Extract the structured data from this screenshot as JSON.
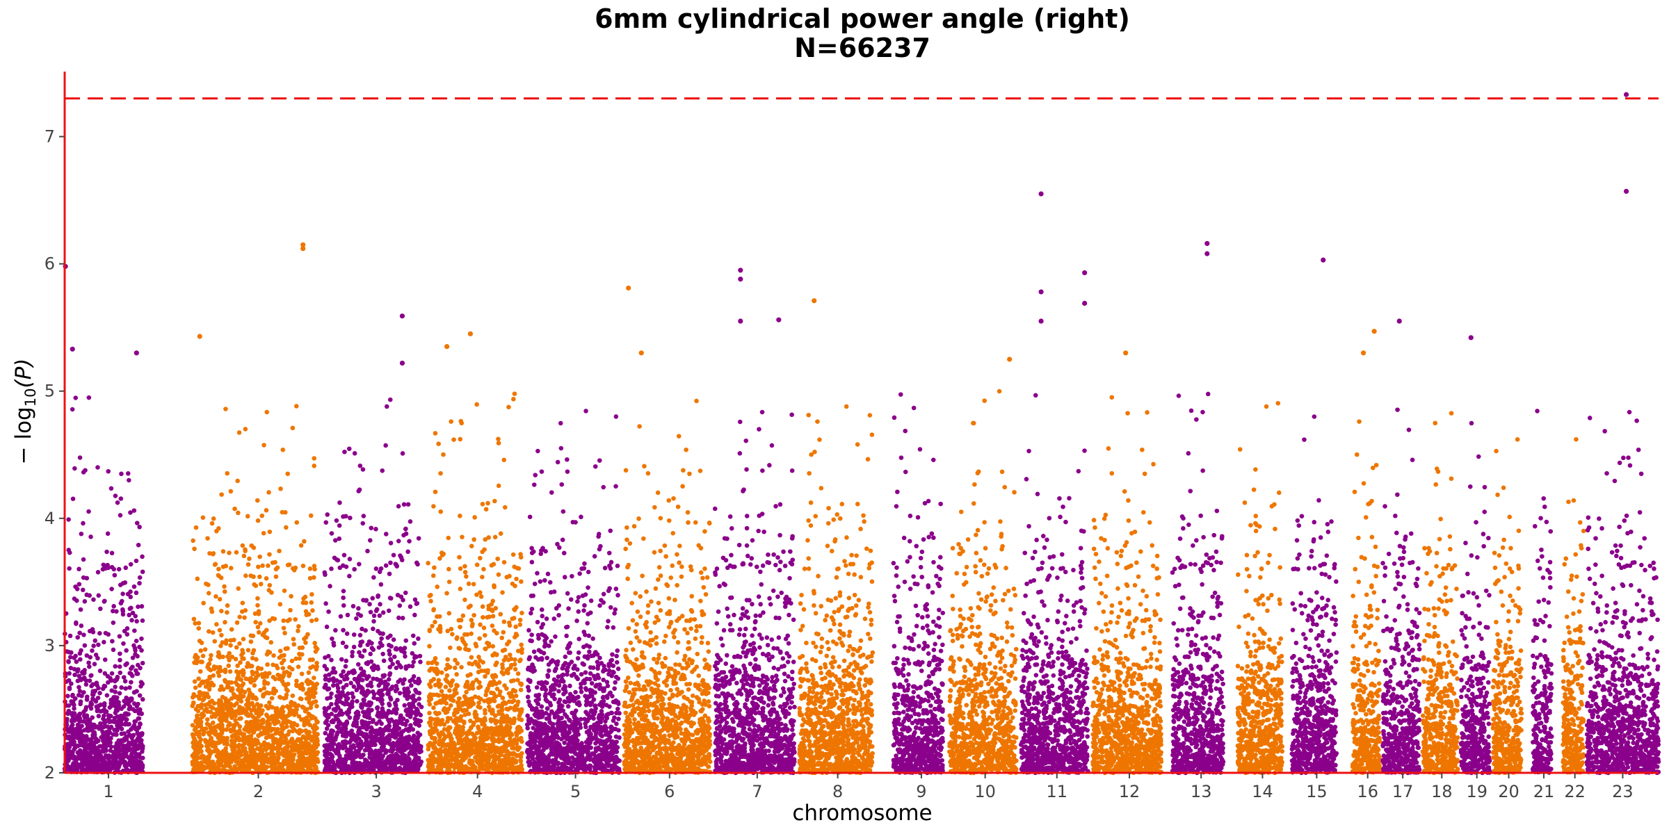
{
  "chart_data": {
    "type": "scatter",
    "title": "6mm cylindrical power angle (right)",
    "subtitle": "N=66237",
    "xlabel": "chromosome",
    "ylabel_prefix": "− log",
    "ylabel_subscript": "10",
    "ylabel_suffix": "(P)",
    "ylim": [
      2,
      7.5
    ],
    "yticks": [
      "2",
      "3",
      "4",
      "5",
      "6",
      "7"
    ],
    "threshold": 7.3,
    "threshold_color": "#ee1111",
    "axis_color": "#ee1111",
    "grid": false,
    "colors": [
      "#8b008b",
      "#ee7600"
    ],
    "chromosomes": [
      {
        "label": "1",
        "start": 0.0,
        "end": 0.055,
        "gap_after": 0.006
      },
      {
        "label": "2",
        "start": 0.08,
        "end": 0.163,
        "gap_after": 0.004
      },
      {
        "label": "3",
        "start": 0.163,
        "end": 0.228,
        "gap_after": 0.004
      },
      {
        "label": "4",
        "start": 0.228,
        "end": 0.29,
        "gap_after": 0.003
      },
      {
        "label": "5",
        "start": 0.29,
        "end": 0.351,
        "gap_after": 0.003
      },
      {
        "label": "6",
        "start": 0.351,
        "end": 0.408,
        "gap_after": 0.003
      },
      {
        "label": "7",
        "start": 0.408,
        "end": 0.461,
        "gap_after": 0.003
      },
      {
        "label": "8",
        "start": 0.461,
        "end": 0.509,
        "gap_after": 0.002
      },
      {
        "label": "9",
        "start": 0.52,
        "end": 0.555,
        "gap_after": 0.004
      },
      {
        "label": "10",
        "start": 0.555,
        "end": 0.6,
        "gap_after": 0.003
      },
      {
        "label": "11",
        "start": 0.6,
        "end": 0.645,
        "gap_after": 0.003
      },
      {
        "label": "12",
        "start": 0.645,
        "end": 0.691,
        "gap_after": 0.003
      },
      {
        "label": "13",
        "start": 0.695,
        "end": 0.731,
        "gap_after": 0.004
      },
      {
        "label": "14",
        "start": 0.736,
        "end": 0.767,
        "gap_after": 0.003
      },
      {
        "label": "15",
        "start": 0.77,
        "end": 0.801,
        "gap_after": 0.003
      },
      {
        "label": "16",
        "start": 0.808,
        "end": 0.827,
        "gap_after": 0.002
      },
      {
        "label": "17",
        "start": 0.827,
        "end": 0.852,
        "gap_after": 0.002
      },
      {
        "label": "18",
        "start": 0.852,
        "end": 0.876,
        "gap_after": 0.002
      },
      {
        "label": "19",
        "start": 0.876,
        "end": 0.896,
        "gap_after": 0.002
      },
      {
        "label": "20",
        "start": 0.896,
        "end": 0.916,
        "gap_after": 0.002
      },
      {
        "label": "21",
        "start": 0.921,
        "end": 0.935,
        "gap_after": 0.002
      },
      {
        "label": "22",
        "start": 0.94,
        "end": 0.955,
        "gap_after": 0.002
      },
      {
        "label": "23",
        "start": 0.955,
        "end": 1.0,
        "gap_after": 0.0
      }
    ],
    "tall_peaks": [
      {
        "chrom": "1",
        "pos": 0.01,
        "p": 5.98
      },
      {
        "chrom": "1",
        "pos": 0.1,
        "p": 5.33
      },
      {
        "chrom": "1",
        "pos": 0.92,
        "p": 5.3
      },
      {
        "chrom": "2",
        "pos": 0.06,
        "p": 5.43
      },
      {
        "chrom": "2",
        "pos": 0.88,
        "p": 6.15
      },
      {
        "chrom": "2",
        "pos": 0.88,
        "p": 6.12
      },
      {
        "chrom": "3",
        "pos": 0.8,
        "p": 5.59
      },
      {
        "chrom": "3",
        "pos": 0.8,
        "p": 5.22
      },
      {
        "chrom": "4",
        "pos": 0.2,
        "p": 5.35
      },
      {
        "chrom": "4",
        "pos": 0.45,
        "p": 5.45
      },
      {
        "chrom": "6",
        "pos": 0.05,
        "p": 5.81
      },
      {
        "chrom": "6",
        "pos": 0.2,
        "p": 5.3
      },
      {
        "chrom": "7",
        "pos": 0.32,
        "p": 5.95
      },
      {
        "chrom": "7",
        "pos": 0.32,
        "p": 5.88
      },
      {
        "chrom": "7",
        "pos": 0.32,
        "p": 5.55
      },
      {
        "chrom": "7",
        "pos": 0.8,
        "p": 5.56
      },
      {
        "chrom": "8",
        "pos": 0.2,
        "p": 5.71
      },
      {
        "chrom": "10",
        "pos": 0.9,
        "p": 5.25
      },
      {
        "chrom": "11",
        "pos": 0.3,
        "p": 6.55
      },
      {
        "chrom": "11",
        "pos": 0.3,
        "p": 5.78
      },
      {
        "chrom": "11",
        "pos": 0.3,
        "p": 5.55
      },
      {
        "chrom": "11",
        "pos": 0.95,
        "p": 5.93
      },
      {
        "chrom": "11",
        "pos": 0.95,
        "p": 5.69
      },
      {
        "chrom": "12",
        "pos": 0.48,
        "p": 5.3
      },
      {
        "chrom": "13",
        "pos": 0.68,
        "p": 6.16
      },
      {
        "chrom": "13",
        "pos": 0.68,
        "p": 6.08
      },
      {
        "chrom": "15",
        "pos": 0.7,
        "p": 6.03
      },
      {
        "chrom": "16",
        "pos": 0.4,
        "p": 5.3
      },
      {
        "chrom": "16",
        "pos": 0.8,
        "p": 5.47
      },
      {
        "chrom": "17",
        "pos": 0.45,
        "p": 5.55
      },
      {
        "chrom": "19",
        "pos": 0.35,
        "p": 5.42
      },
      {
        "chrom": "23",
        "pos": 0.55,
        "p": 7.33
      },
      {
        "chrom": "23",
        "pos": 0.55,
        "p": 6.57
      }
    ]
  }
}
